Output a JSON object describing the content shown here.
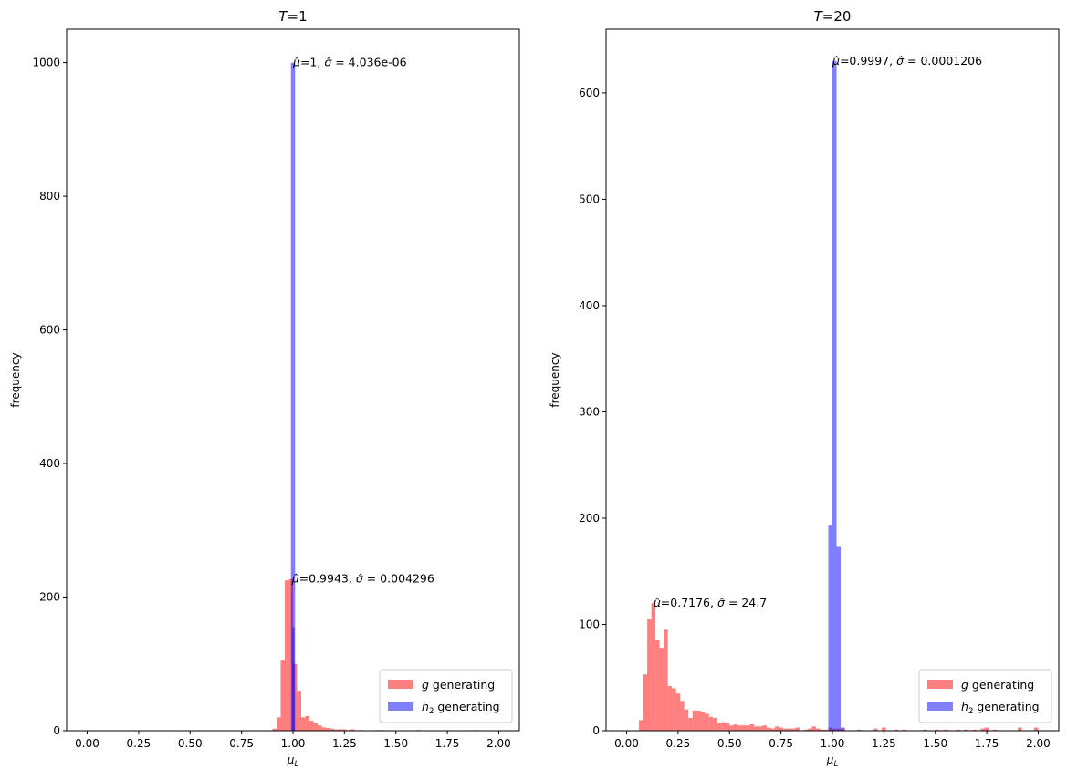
{
  "chart_data": [
    {
      "type": "bar",
      "title_var": "T",
      "title_eq": "=1",
      "xlabel": "μ",
      "xlabel_sub": "L",
      "ylabel": "frequency",
      "xlim": [
        -0.1,
        2.1
      ],
      "ylim": [
        0,
        1050
      ],
      "x_ticks": [
        "0.00",
        "0.25",
        "0.50",
        "0.75",
        "1.00",
        "1.25",
        "1.50",
        "1.75",
        "2.00"
      ],
      "y_ticks": [
        "0",
        "200",
        "400",
        "600",
        "800",
        "1000"
      ],
      "legend_position": "lower-right",
      "series": [
        {
          "name_var": "g",
          "name_rest": " generating",
          "color": "#ff0000",
          "alpha": 0.5,
          "bin_width": 0.02,
          "x": [
            0.91,
            0.93,
            0.95,
            0.97,
            0.99,
            1.01,
            1.03,
            1.05,
            1.07,
            1.09,
            1.11,
            1.13,
            1.15,
            1.17,
            1.19,
            1.21,
            1.23,
            1.25,
            1.27,
            1.29,
            1.33,
            1.41,
            1.43,
            1.61,
            1.89
          ],
          "values": [
            3,
            20,
            105,
            225,
            227,
            100,
            60,
            20,
            22,
            15,
            12,
            8,
            5,
            4,
            3,
            2,
            2,
            2,
            1,
            2,
            1,
            1,
            1,
            1,
            1
          ]
        },
        {
          "name_var": "h",
          "name_sub": "2",
          "name_rest": " generating",
          "color": "#0000ff",
          "alpha": 0.5,
          "bin_width": 0.02,
          "x": [
            1.0
          ],
          "values": [
            1000
          ]
        },
        {
          "name": "",
          "color": "#0000ff",
          "alpha": 0.5,
          "bin_width": 0.01,
          "legend": false,
          "x": [
            1.002
          ],
          "values": [
            155
          ]
        }
      ],
      "annotations": [
        {
          "mu": "1",
          "sigma": "4.036e-06",
          "x": 1.0,
          "y": 1000
        },
        {
          "mu": "0.9943",
          "sigma": "0.004296",
          "x": 0.9943,
          "y": 227
        }
      ]
    },
    {
      "type": "bar",
      "title_var": "T",
      "title_eq": "=20",
      "xlabel": "μ",
      "xlabel_sub": "L",
      "ylabel": "frequency",
      "xlim": [
        -0.1,
        2.1
      ],
      "ylim": [
        0,
        660
      ],
      "x_ticks": [
        "0.00",
        "0.25",
        "0.50",
        "0.75",
        "1.00",
        "1.25",
        "1.50",
        "1.75",
        "2.00"
      ],
      "y_ticks": [
        "0",
        "100",
        "200",
        "300",
        "400",
        "500",
        "600"
      ],
      "legend_position": "lower-right",
      "series": [
        {
          "name_var": "g",
          "name_rest": " generating",
          "color": "#ff0000",
          "alpha": 0.5,
          "bin_width": 0.02,
          "x": [
            0.07,
            0.09,
            0.11,
            0.13,
            0.15,
            0.17,
            0.19,
            0.21,
            0.23,
            0.25,
            0.27,
            0.29,
            0.31,
            0.33,
            0.35,
            0.37,
            0.39,
            0.41,
            0.43,
            0.45,
            0.47,
            0.49,
            0.51,
            0.53,
            0.55,
            0.57,
            0.59,
            0.61,
            0.63,
            0.65,
            0.67,
            0.69,
            0.71,
            0.73,
            0.75,
            0.77,
            0.79,
            0.81,
            0.83,
            0.87,
            0.89,
            0.91,
            0.93,
            0.95,
            0.97,
            0.99,
            1.01,
            1.03,
            1.05,
            1.13,
            1.21,
            1.25,
            1.31,
            1.35,
            1.45,
            1.51,
            1.55,
            1.61,
            1.65,
            1.69,
            1.73,
            1.75,
            1.79,
            1.91,
            1.99
          ],
          "values": [
            10,
            53,
            105,
            120,
            85,
            78,
            95,
            42,
            40,
            35,
            28,
            20,
            12,
            19,
            19,
            18,
            16,
            13,
            12,
            7,
            8,
            7,
            5,
            6,
            5,
            5,
            5,
            6,
            4,
            4,
            5,
            3,
            2,
            4,
            3,
            2,
            2,
            2,
            3,
            1,
            2,
            4,
            2,
            1,
            1,
            3,
            2,
            2,
            2,
            1,
            2,
            3,
            1,
            1,
            1,
            1,
            1,
            1,
            1,
            1,
            2,
            3,
            1,
            3,
            3
          ]
        },
        {
          "name_var": "h",
          "name_sub": "2",
          "name_rest": " generating",
          "color": "#0000ff",
          "alpha": 0.5,
          "bin_width": 0.02,
          "x": [
            0.99,
            1.01,
            1.03,
            1.05
          ],
          "values": [
            193,
            630,
            173,
            3
          ]
        }
      ],
      "annotations": [
        {
          "mu": "0.9997",
          "sigma": "0.0001206",
          "x": 1.0,
          "y": 630
        },
        {
          "mu": "0.7176",
          "sigma": "24.7",
          "x": 0.13,
          "y": 120
        }
      ]
    }
  ]
}
